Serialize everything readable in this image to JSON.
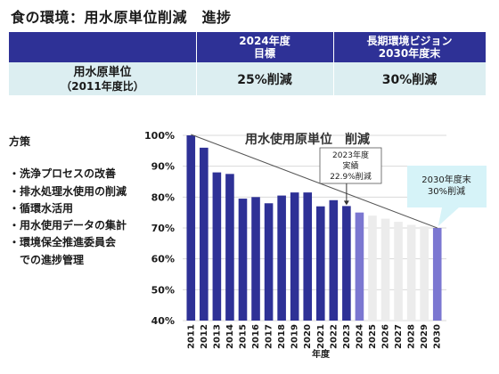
{
  "title": "食の環境：用水原単位削減　進捗",
  "goal_table": {
    "col2_header": [
      "2024年度",
      "目標"
    ],
    "col3_header": [
      "長期環境ビジョン",
      "2030年度末"
    ],
    "row_label": [
      "用水原単位",
      "（2011年度比）"
    ],
    "col2_value": "25%削減",
    "col3_value": "30%削減"
  },
  "measures": {
    "title": "方策",
    "items": [
      "・洗浄プロセスの改善",
      "・排水処理水使用の削減",
      "・循環水活用",
      "・用水使用データの集計",
      "・環境保全推進委員会",
      "　での進捗管理"
    ]
  },
  "colors": {
    "header_bg": "#2e3196",
    "row_bg": "#dceef1",
    "bar_actual": "#2e3196",
    "bar_target": "#7b77d1",
    "bar_future": "#ececec",
    "callout_bg": "#d6f3f8"
  },
  "chart_data": {
    "type": "bar",
    "title": "用水使用原単位　削減",
    "xlabel": "年度",
    "ylabel": "",
    "ylim": [
      40,
      100
    ],
    "y_ticks": [
      "40%",
      "50%",
      "60%",
      "70%",
      "80%",
      "90%",
      "100%"
    ],
    "categories": [
      "2011",
      "2012",
      "2013",
      "2014",
      "2015",
      "2016",
      "2017",
      "2018",
      "2019",
      "2020",
      "2021",
      "2022",
      "2023",
      "2024",
      "2025",
      "2026",
      "2027",
      "2028",
      "2029",
      "2030"
    ],
    "values": [
      100,
      96,
      88,
      87.5,
      79.5,
      80,
      78,
      80.5,
      81.5,
      81.5,
      77,
      79,
      77.1,
      75,
      74,
      73,
      72,
      71,
      70.5,
      70
    ],
    "bar_kind": [
      "actual",
      "actual",
      "actual",
      "actual",
      "actual",
      "actual",
      "actual",
      "actual",
      "actual",
      "actual",
      "actual",
      "actual",
      "actual",
      "target",
      "future",
      "future",
      "future",
      "future",
      "future",
      "target"
    ],
    "trend_line": {
      "from_category": "2011",
      "from_value": 100,
      "to_category": "2030",
      "to_value": 70
    },
    "annotations": [
      {
        "category": "2023",
        "lines": [
          "2023年度",
          "実績",
          "22.9%削減"
        ]
      },
      {
        "category": "2030",
        "lines": [
          "2030年度末",
          "30%削減"
        ]
      }
    ]
  }
}
